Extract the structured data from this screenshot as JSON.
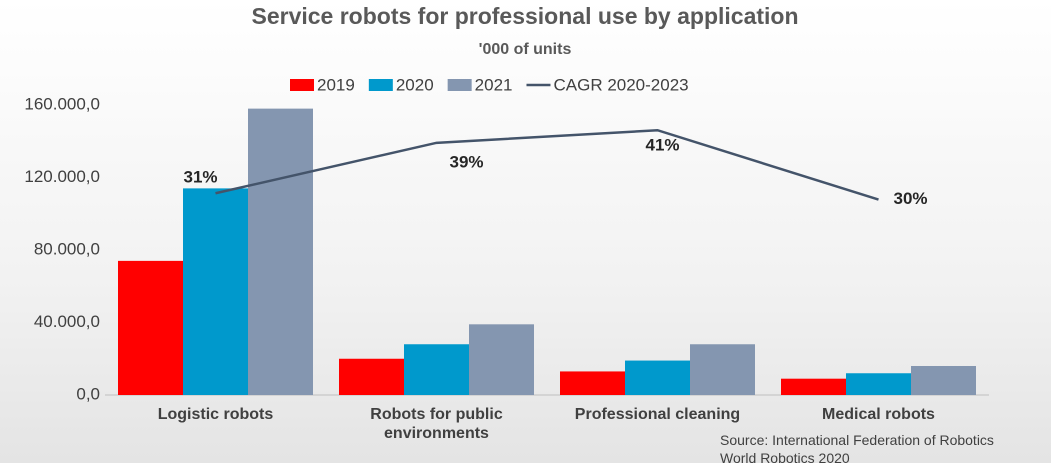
{
  "chart_data": {
    "type": "bar",
    "title": "Service robots for professional use by application",
    "subtitle": "'000 of units",
    "categories": [
      "Logistic robots",
      "Robots for public environments",
      "Professional cleaning",
      "Medical robots"
    ],
    "series": [
      {
        "name": "2019",
        "color": "#ff0000",
        "values": [
          74000,
          20000,
          13000,
          9000
        ]
      },
      {
        "name": "2020",
        "color": "#0099cc",
        "values": [
          114000,
          28000,
          19000,
          12000
        ]
      },
      {
        "name": "2021",
        "color": "#8496b0",
        "values": [
          158000,
          39000,
          28000,
          16000
        ]
      },
      {
        "name": "CAGR 2020-2023",
        "type": "line",
        "axis": "y2",
        "color": "#44546a",
        "values": [
          31,
          39,
          41,
          30
        ],
        "value_labels": [
          "31%",
          "39%",
          "41%",
          "30%"
        ]
      }
    ],
    "ylim": [
      0,
      160000
    ],
    "yticks": [
      {
        "value": 0,
        "label": "0,0"
      },
      {
        "value": 40000,
        "label": "40.000,0"
      },
      {
        "value": 80000,
        "label": "80.000,0"
      },
      {
        "value": 120000,
        "label": "120.000,0"
      },
      {
        "value": 160000,
        "label": "160.000,0"
      }
    ],
    "y2lim": [
      -1,
      45
    ],
    "legend": "top",
    "source": [
      "Source: International Federation of Robotics",
      "World Robotics 2020"
    ]
  }
}
